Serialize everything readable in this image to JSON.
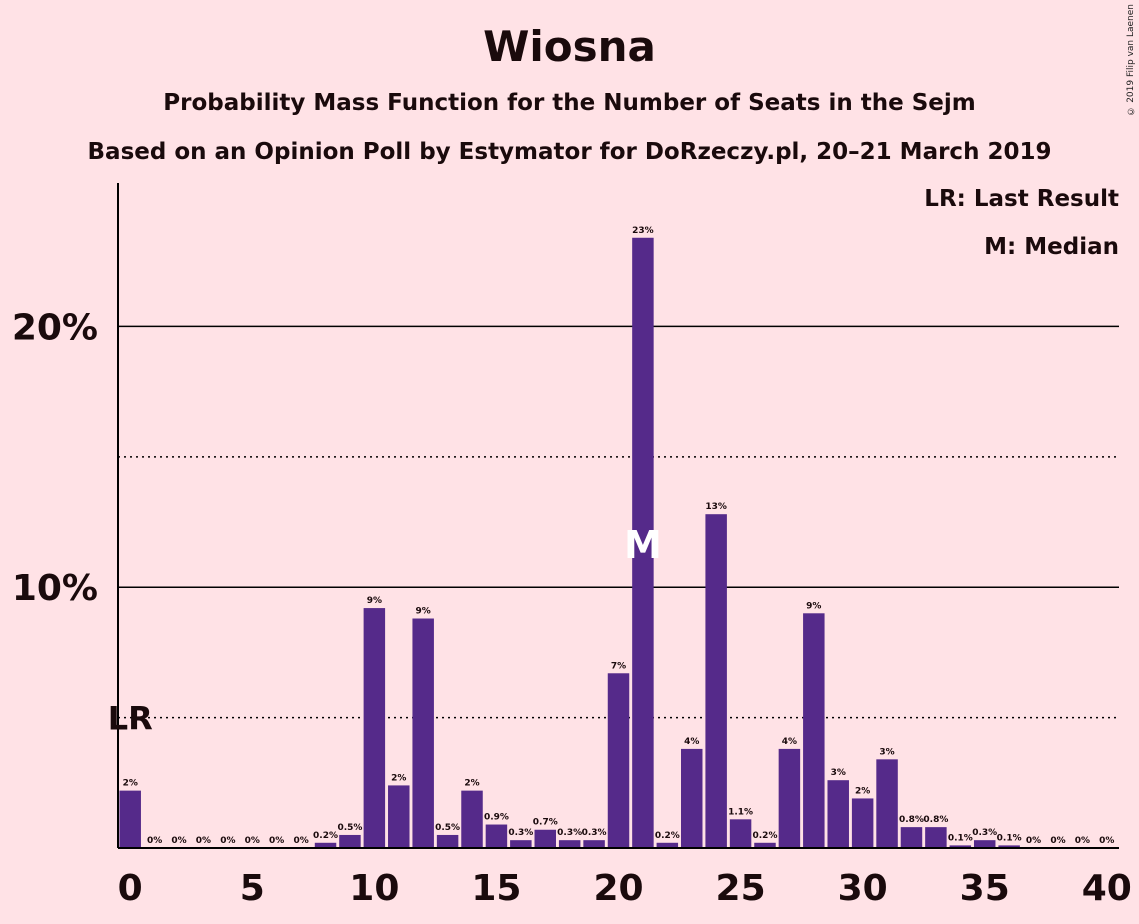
{
  "header": {
    "title": "Wiosna",
    "subtitle1": "Probability Mass Function for the Number of Seats in the Sejm",
    "subtitle2": "Based on an Opinion Poll by Estymator for DoRzeczy.pl, 20–21 March 2019",
    "copyright": "© 2019 Filip van Laenen"
  },
  "legend": {
    "last_result": "LR: Last Result",
    "median": "M: Median"
  },
  "colors": {
    "background": "#FFE2E6",
    "bar": "#552A8A",
    "text": "#1a0a0c"
  },
  "chart_data": {
    "type": "bar",
    "x": [
      0,
      1,
      2,
      3,
      4,
      5,
      6,
      7,
      8,
      9,
      10,
      11,
      12,
      13,
      14,
      15,
      16,
      17,
      18,
      19,
      20,
      21,
      22,
      23,
      24,
      25,
      26,
      27,
      28,
      29,
      30,
      31,
      32,
      33,
      34,
      35,
      36,
      37,
      38,
      39,
      40
    ],
    "values": [
      2.2,
      0,
      0,
      0,
      0,
      0,
      0,
      0,
      0.2,
      0.5,
      9.2,
      2.4,
      8.8,
      0.5,
      2.2,
      0.9,
      0.3,
      0.7,
      0.3,
      0.3,
      6.7,
      23.4,
      0.2,
      3.8,
      12.8,
      1.1,
      0.2,
      3.8,
      9.0,
      2.6,
      1.9,
      3.4,
      0.8,
      0.8,
      0.1,
      0.3,
      0.1,
      0,
      0,
      0,
      0
    ],
    "labels": [
      "2%",
      "0%",
      "0%",
      "0%",
      "0%",
      "0%",
      "0%",
      "0%",
      "0.2%",
      "0.5%",
      "9%",
      "2%",
      "9%",
      "0.5%",
      "2%",
      "0.9%",
      "0.3%",
      "0.7%",
      "0.3%",
      "0.3%",
      "7%",
      "23%",
      "0.2%",
      "4%",
      "13%",
      "1.1%",
      "0.2%",
      "4%",
      "9%",
      "3%",
      "2%",
      "3%",
      "0.8%",
      "0.8%",
      "0.1%",
      "0.3%",
      "0.1%",
      "0%",
      "0%",
      "0%",
      "0%"
    ],
    "xticks": [
      0,
      5,
      10,
      15,
      20,
      25,
      30,
      35,
      40
    ],
    "yticks": [
      {
        "value": 10,
        "label": "10%"
      },
      {
        "value": 20,
        "label": "20%"
      }
    ],
    "dotted_lines": [
      5,
      15
    ],
    "ylim": [
      0,
      25.5
    ],
    "xlim": [
      -0.5,
      40.5
    ],
    "last_result": {
      "seat": 0,
      "label": "LR"
    },
    "median": {
      "seat": 21,
      "label": "M"
    },
    "grid": true
  }
}
